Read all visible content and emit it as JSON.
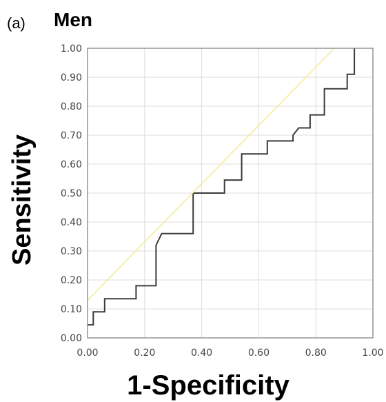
{
  "panel_label": "(a)",
  "chart_data": {
    "type": "line",
    "title": "Men",
    "xlabel": "1-Specificity",
    "ylabel": "Sensitivity",
    "xlim": [
      0,
      1
    ],
    "ylim": [
      0,
      1
    ],
    "x_ticks": [
      "0.00",
      "0.20",
      "0.40",
      "0.60",
      "0.80",
      "1.00"
    ],
    "y_ticks": [
      "0.00",
      "0.10",
      "0.20",
      "0.30",
      "0.40",
      "0.50",
      "0.60",
      "0.70",
      "0.80",
      "0.90",
      "1.00"
    ],
    "grid": true,
    "series": [
      {
        "color": "#3a3a3a",
        "x": [
          0.0,
          0.0,
          0.02,
          0.02,
          0.06,
          0.06,
          0.17,
          0.17,
          0.24,
          0.24,
          0.26,
          0.26,
          0.37,
          0.37,
          0.48,
          0.48,
          0.54,
          0.54,
          0.63,
          0.63,
          0.72,
          0.72,
          0.74,
          0.74,
          0.78,
          0.78,
          0.83,
          0.83,
          0.91,
          0.91,
          0.935,
          0.935
        ],
        "y": [
          0.045,
          0.045,
          0.045,
          0.09,
          0.09,
          0.135,
          0.135,
          0.18,
          0.18,
          0.32,
          0.36,
          0.36,
          0.36,
          0.5,
          0.5,
          0.545,
          0.545,
          0.635,
          0.635,
          0.68,
          0.68,
          0.7,
          0.725,
          0.725,
          0.725,
          0.77,
          0.77,
          0.86,
          0.86,
          0.91,
          0.91,
          1.0
        ]
      },
      {
        "color": "#f2ec9a",
        "x": [
          0.0,
          0.865
        ],
        "y": [
          0.13,
          1.0
        ]
      }
    ]
  }
}
